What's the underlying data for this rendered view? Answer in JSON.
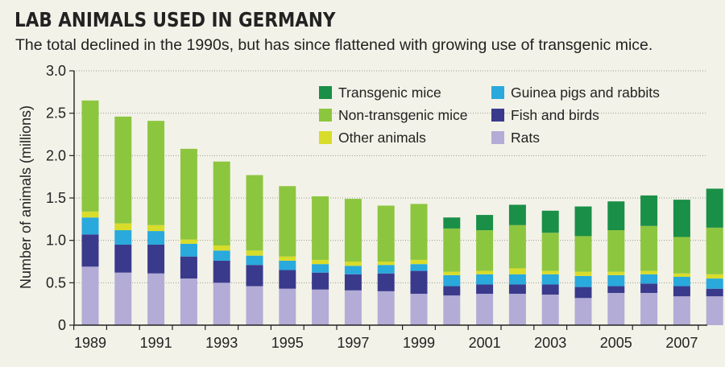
{
  "header": {
    "title": "LAB ANIMALS USED IN GERMANY",
    "subtitle": "The total declined in the 1990s, but has since flattened with growing use of transgenic mice."
  },
  "chart_data": {
    "type": "bar",
    "stacked": true,
    "title": "LAB ANIMALS USED IN GERMANY",
    "xlabel": "",
    "ylabel": "Number of animals (millions)",
    "ylim": [
      0,
      3.0
    ],
    "yticks": [
      "0",
      "0.5",
      "1.0",
      "1.5",
      "2.0",
      "2.5",
      "3.0"
    ],
    "ytick_values": [
      0,
      0.5,
      1.0,
      1.5,
      2.0,
      2.5,
      3.0
    ],
    "grid": "horizontal dotted",
    "legend_position": "top-right",
    "categories": [
      "1989",
      "1990",
      "1991",
      "1992",
      "1993",
      "1994",
      "1995",
      "1996",
      "1997",
      "1998",
      "1999",
      "2000",
      "2001",
      "2002",
      "2003",
      "2004",
      "2005",
      "2006",
      "2007",
      "2008"
    ],
    "xtick_labels": [
      "1989",
      "1991",
      "1993",
      "1995",
      "1997",
      "1999",
      "2001",
      "2003",
      "2005",
      "2007"
    ],
    "series": [
      {
        "name": "Rats",
        "color": "#b3acd6",
        "values": [
          0.69,
          0.62,
          0.61,
          0.55,
          0.5,
          0.46,
          0.43,
          0.42,
          0.41,
          0.4,
          0.37,
          0.35,
          0.37,
          0.37,
          0.36,
          0.32,
          0.38,
          0.38,
          0.34,
          0.34
        ]
      },
      {
        "name": "Fish and birds",
        "color": "#3a3a8c",
        "values": [
          0.38,
          0.33,
          0.34,
          0.26,
          0.26,
          0.25,
          0.22,
          0.2,
          0.19,
          0.21,
          0.27,
          0.11,
          0.11,
          0.11,
          0.12,
          0.13,
          0.08,
          0.11,
          0.12,
          0.09
        ]
      },
      {
        "name": "Guinea pigs and rabbits",
        "color": "#29a9dc",
        "values": [
          0.2,
          0.17,
          0.16,
          0.15,
          0.12,
          0.11,
          0.11,
          0.1,
          0.1,
          0.1,
          0.08,
          0.13,
          0.12,
          0.12,
          0.12,
          0.13,
          0.13,
          0.11,
          0.11,
          0.12
        ]
      },
      {
        "name": "Other animals",
        "color": "#d8dc2a",
        "values": [
          0.07,
          0.08,
          0.07,
          0.05,
          0.06,
          0.06,
          0.05,
          0.05,
          0.05,
          0.04,
          0.05,
          0.04,
          0.04,
          0.07,
          0.04,
          0.05,
          0.04,
          0.04,
          0.04,
          0.05
        ]
      },
      {
        "name": "Non-transgenic mice",
        "color": "#8cc63f",
        "values": [
          1.31,
          1.26,
          1.23,
          1.07,
          0.99,
          0.89,
          0.83,
          0.75,
          0.74,
          0.66,
          0.66,
          0.51,
          0.48,
          0.51,
          0.45,
          0.42,
          0.49,
          0.53,
          0.43,
          0.55
        ]
      },
      {
        "name": "Transgenic mice",
        "color": "#1a8f47",
        "values": [
          0,
          0,
          0,
          0,
          0,
          0,
          0,
          0,
          0,
          0,
          0,
          0.13,
          0.18,
          0.24,
          0.26,
          0.35,
          0.34,
          0.36,
          0.44,
          0.46
        ]
      }
    ],
    "legend_order": [
      "Transgenic mice",
      "Guinea pigs and rabbits",
      "Non-transgenic mice",
      "Fish and birds",
      "Other animals",
      "Rats"
    ]
  }
}
